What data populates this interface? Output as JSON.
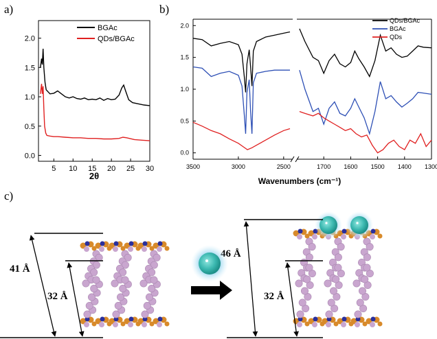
{
  "panels": {
    "a": "a)",
    "b": "b)",
    "c": "c)"
  },
  "chart_data": [
    {
      "type": "line",
      "panel": "a)",
      "xlabel": "2θ",
      "ylabel": "",
      "xlim": [
        1,
        30
      ],
      "ylim": [
        -0.1,
        2.3
      ],
      "xticks": [
        "5",
        "10",
        "15",
        "20",
        "25",
        "30"
      ],
      "yticks": [
        "0.0",
        "0.5",
        "1.0",
        "1.5",
        "2.0"
      ],
      "legend_position": "top-right",
      "series": [
        {
          "name": "BGAc",
          "color": "#000000",
          "x": [
            1.5,
            1.8,
            2.0,
            2.2,
            2.4,
            2.7,
            3,
            4,
            5,
            6,
            7,
            8,
            9,
            10,
            11,
            12,
            13,
            14,
            15,
            16,
            17,
            18,
            19,
            20,
            21,
            22,
            22.7,
            23.2,
            23.7,
            24.5,
            25.5,
            27,
            28.5,
            30
          ],
          "y": [
            1.5,
            1.65,
            1.55,
            1.82,
            1.5,
            1.25,
            1.12,
            1.05,
            1.06,
            1.1,
            1.05,
            1.0,
            0.98,
            1.0,
            0.97,
            0.96,
            0.98,
            0.95,
            0.96,
            0.95,
            0.98,
            0.94,
            0.97,
            0.95,
            0.96,
            1.03,
            1.15,
            1.2,
            1.1,
            0.95,
            0.9,
            0.88,
            0.86,
            0.85
          ]
        },
        {
          "name": "QDs/BGAc",
          "color": "#e02020",
          "x": [
            1.5,
            1.8,
            2.0,
            2.2,
            2.4,
            2.6,
            2.9,
            3.2,
            4,
            5,
            6,
            8,
            10,
            12,
            14,
            16,
            18,
            20,
            22,
            23,
            24,
            26,
            28,
            30
          ],
          "y": [
            1.05,
            1.22,
            1.05,
            1.18,
            0.8,
            0.5,
            0.38,
            0.34,
            0.33,
            0.32,
            0.32,
            0.31,
            0.3,
            0.3,
            0.29,
            0.29,
            0.28,
            0.28,
            0.29,
            0.31,
            0.3,
            0.27,
            0.26,
            0.25
          ]
        }
      ]
    },
    {
      "type": "line",
      "panel": "b)",
      "xlabel": "Wavenumbers (cm⁻¹)",
      "ylabel": "",
      "x_axis_broken": true,
      "xlim_left": [
        3500,
        2400
      ],
      "xlim_right": [
        1800,
        1300
      ],
      "ylim": [
        -0.1,
        2.1
      ],
      "xticks_left": [
        "3500",
        "3000",
        "2500"
      ],
      "xticks_right": [
        "1700",
        "1600",
        "1500",
        "1400",
        "1300"
      ],
      "yticks": [
        "0.0",
        "0.5",
        "1.0",
        "1.5",
        "2.0"
      ],
      "legend_position": "top-right",
      "series": [
        {
          "name": "QDs/BGAc",
          "color": "#000000",
          "left_x": [
            3500,
            3400,
            3300,
            3200,
            3100,
            3000,
            2960,
            2935,
            2920,
            2905,
            2880,
            2865,
            2850,
            2835,
            2800,
            2700,
            2600,
            2500,
            2430
          ],
          "left_y": [
            1.8,
            1.78,
            1.68,
            1.72,
            1.75,
            1.7,
            1.55,
            1.2,
            0.95,
            1.4,
            1.62,
            1.35,
            1.05,
            1.6,
            1.75,
            1.82,
            1.85,
            1.88,
            1.9
          ],
          "right_x": [
            1790,
            1770,
            1740,
            1720,
            1700,
            1680,
            1660,
            1640,
            1620,
            1600,
            1585,
            1570,
            1550,
            1530,
            1510,
            1490,
            1470,
            1450,
            1430,
            1410,
            1390,
            1370,
            1350,
            1330,
            1300
          ],
          "right_y": [
            1.95,
            1.75,
            1.5,
            1.45,
            1.25,
            1.45,
            1.55,
            1.4,
            1.35,
            1.42,
            1.6,
            1.48,
            1.35,
            1.2,
            1.45,
            1.85,
            1.6,
            1.65,
            1.55,
            1.5,
            1.52,
            1.6,
            1.68,
            1.66,
            1.65
          ]
        },
        {
          "name": "BGAc",
          "color": "#2d4fb5",
          "left_x": [
            3500,
            3400,
            3300,
            3200,
            3100,
            3000,
            2960,
            2935,
            2920,
            2905,
            2880,
            2865,
            2850,
            2835,
            2800,
            2700,
            2600,
            2500,
            2430
          ],
          "left_y": [
            1.35,
            1.33,
            1.2,
            1.25,
            1.28,
            1.22,
            1.05,
            0.6,
            0.3,
            0.95,
            1.15,
            0.65,
            0.3,
            1.1,
            1.25,
            1.28,
            1.3,
            1.3,
            1.3
          ],
          "right_x": [
            1790,
            1770,
            1740,
            1720,
            1700,
            1680,
            1660,
            1640,
            1620,
            1600,
            1585,
            1570,
            1550,
            1530,
            1510,
            1490,
            1470,
            1450,
            1430,
            1410,
            1390,
            1370,
            1350,
            1330,
            1300
          ],
          "right_y": [
            1.3,
            1.0,
            0.65,
            0.7,
            0.45,
            0.7,
            0.8,
            0.62,
            0.58,
            0.7,
            0.85,
            0.72,
            0.55,
            0.3,
            0.65,
            1.12,
            0.85,
            0.9,
            0.8,
            0.72,
            0.78,
            0.85,
            0.95,
            0.94,
            0.92
          ]
        },
        {
          "name": "QDs",
          "color": "#e02020",
          "left_x": [
            3500,
            3400,
            3300,
            3200,
            3100,
            3000,
            2950,
            2900,
            2850,
            2800,
            2700,
            2600,
            2500,
            2430
          ],
          "left_y": [
            0.48,
            0.42,
            0.35,
            0.3,
            0.22,
            0.15,
            0.1,
            0.05,
            0.08,
            0.12,
            0.2,
            0.28,
            0.35,
            0.38
          ],
          "right_x": [
            1790,
            1770,
            1740,
            1720,
            1700,
            1680,
            1660,
            1640,
            1620,
            1600,
            1580,
            1560,
            1540,
            1520,
            1500,
            1480,
            1460,
            1440,
            1420,
            1400,
            1380,
            1360,
            1340,
            1320,
            1300
          ],
          "right_y": [
            0.65,
            0.62,
            0.58,
            0.62,
            0.55,
            0.5,
            0.45,
            0.4,
            0.35,
            0.38,
            0.3,
            0.25,
            0.28,
            0.12,
            0.0,
            0.05,
            0.15,
            0.2,
            0.1,
            0.05,
            0.2,
            0.15,
            0.3,
            0.1,
            0.2
          ]
        }
      ]
    }
  ],
  "diagram": {
    "left_outer_spacing": "41 Å",
    "left_inner_spacing": "32 Å",
    "right_outer_spacing": "46 Å",
    "right_inner_spacing": "32 Å",
    "colors": {
      "chain": "#c9a6cf",
      "chain_dark": "#a987b0",
      "head_orange": "#d88a2a",
      "head_blue": "#2a2f9c",
      "qd": "#3bb8b0",
      "qd_glow": "#9fd8f0",
      "arrow": "#000000"
    }
  }
}
